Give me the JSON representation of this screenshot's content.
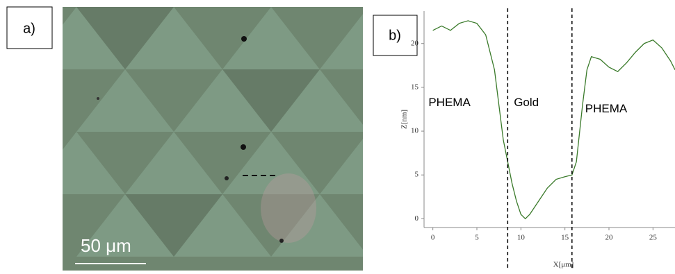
{
  "panel_a": {
    "label": "a)",
    "scale_bar": "50 μm"
  },
  "panel_b": {
    "label": "b)"
  },
  "chart_data": {
    "type": "line",
    "x_label": "X[μm]",
    "y_label": "Z[nm]",
    "x": [
      0,
      1,
      2,
      3,
      4,
      5,
      6,
      7,
      7.5,
      8,
      8.5,
      9,
      9.5,
      10,
      10.5,
      11,
      12,
      13,
      14,
      15,
      15.8,
      16.3,
      17,
      17.5,
      18,
      19,
      20,
      21,
      22,
      23,
      24,
      25,
      26,
      27,
      27.5
    ],
    "series": [
      {
        "name": "profile",
        "color": "#3a7a2a",
        "values": [
          21.5,
          22,
          21.5,
          22.3,
          22.6,
          22.3,
          21,
          17,
          13,
          9,
          6.5,
          4,
          2,
          0.5,
          0,
          0.5,
          2,
          3.5,
          4.5,
          4.8,
          5,
          6.5,
          13,
          17,
          18.5,
          18.2,
          17.3,
          16.8,
          17.8,
          19,
          20,
          20.4,
          19.5,
          18,
          17
        ]
      }
    ],
    "xlim": [
      -1,
      27.5
    ],
    "ylim": [
      -1,
      23.7
    ],
    "xticks": [
      0,
      5,
      10,
      15,
      20,
      25
    ],
    "yticks": [
      0,
      5,
      10,
      15,
      20
    ],
    "vlines": [
      8.5,
      15.8
    ],
    "annotations": [
      {
        "text": "PHEMA",
        "x": -0.5,
        "y": 13.2
      },
      {
        "text": "Gold",
        "x": 9.2,
        "y": 13.2
      },
      {
        "text": "PHEMA",
        "x": 17.3,
        "y": 12.5
      }
    ]
  }
}
